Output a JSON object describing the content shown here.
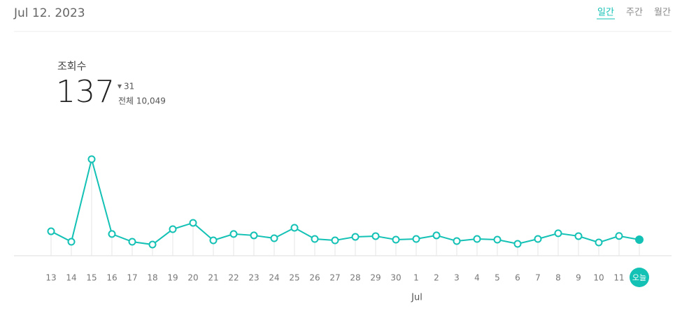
{
  "header": {
    "date": "Jul 12. 2023",
    "tabs": [
      "일간",
      "주간",
      "월간"
    ]
  },
  "summary": {
    "label": "조회수",
    "value": "137",
    "change": "31",
    "total": "전체 10,049"
  },
  "chart_data": {
    "type": "line",
    "color": "#13c1b5",
    "categories": [
      "13",
      "14",
      "15",
      "16",
      "17",
      "18",
      "19",
      "20",
      "21",
      "22",
      "23",
      "24",
      "25",
      "26",
      "27",
      "28",
      "29",
      "30",
      "1",
      "2",
      "3",
      "4",
      "5",
      "6",
      "7",
      "8",
      "9",
      "10",
      "11",
      "오늘"
    ],
    "values": [
      208,
      119,
      822,
      185,
      119,
      95,
      226,
      280,
      131,
      185,
      173,
      149,
      238,
      143,
      131,
      161,
      167,
      137,
      143,
      173,
      125,
      143,
      137,
      101,
      143,
      191,
      167,
      113,
      168,
      137
    ],
    "month_label": "Jul"
  }
}
